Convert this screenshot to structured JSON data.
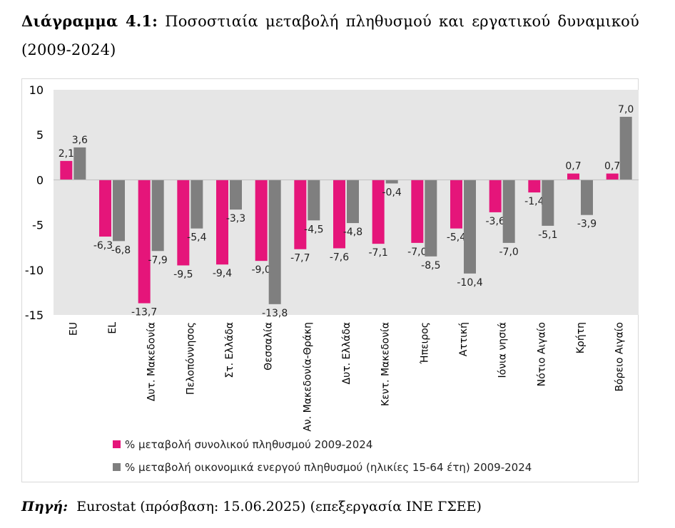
{
  "heading": {
    "label": "Διάγραμμα 4.1:",
    "text": "Ποσοστιαία μεταβολή πληθυσμού και εργατικού δυναμικού (2009-2024)"
  },
  "source": {
    "label": "Πηγή",
    "text": "Eurostat (πρόσβαση: 15.06.2025) (επεξεργασία ΙΝΕ ΓΣΕΕ)"
  },
  "colors": {
    "series1": "#e5157a",
    "series2": "#7f7f7f",
    "plot_bg": "#e6e6e6"
  },
  "chart_data": {
    "type": "bar",
    "categories": [
      "EU",
      "EL",
      "Δυτ. Μακεδονία",
      "Πελοπόννησος",
      "Στ. Ελλάδα",
      "Θεσσαλία",
      "Αν. Μακεδονία-Θράκη",
      "Δυτ. Ελλάδα",
      "Κεντ. Μακεδονία",
      "Ήπειρος",
      "Αττική",
      "Ιόνια νησιά",
      "Νότιο Αιγαίο",
      "Κρήτη",
      "Βόρειο Αιγαίο"
    ],
    "series": [
      {
        "name": "% μεταβολή συνολικού πληθυσμού 2009-2024",
        "values": [
          2.1,
          -6.3,
          -13.7,
          -9.5,
          -9.4,
          -9.0,
          -7.7,
          -7.6,
          -7.1,
          -7.0,
          -5.4,
          -3.6,
          -1.4,
          0.7,
          0.7
        ],
        "labels": [
          "2,1",
          "-6,3",
          "-13,7",
          "-9,5",
          "-9,4",
          "-9,0",
          "-7,7",
          "-7,6",
          "-7,1",
          "-7,0",
          "-5,4",
          "-3,6",
          "-1,4",
          "0,7",
          "0,7"
        ]
      },
      {
        "name": "% μεταβολή οικονομικά ενεργού πληθυσμού (ηλικίες 15-64 έτη) 2009-2024",
        "values": [
          3.6,
          -6.8,
          -7.9,
          -5.4,
          -3.3,
          -13.8,
          -4.5,
          -4.8,
          -0.4,
          -8.5,
          -10.4,
          -7.0,
          -5.1,
          -3.9,
          7.0
        ],
        "labels": [
          "3,6",
          "-6,8",
          "-7,9",
          "-5,4",
          "-3,3",
          "-13,8",
          "-4,5",
          "-4,8",
          "-0,4",
          "-8,5",
          "-10,4",
          "-7,0",
          "-5,1",
          "-3,9",
          "7,0"
        ]
      }
    ],
    "ylim": [
      -15,
      10
    ],
    "yticks": [
      10,
      5,
      0,
      -5,
      -10,
      -15
    ],
    "ytick_labels": [
      "10",
      "5",
      "0",
      "-5",
      "-10",
      "-15"
    ],
    "grid": false,
    "legend_position": "bottom"
  }
}
